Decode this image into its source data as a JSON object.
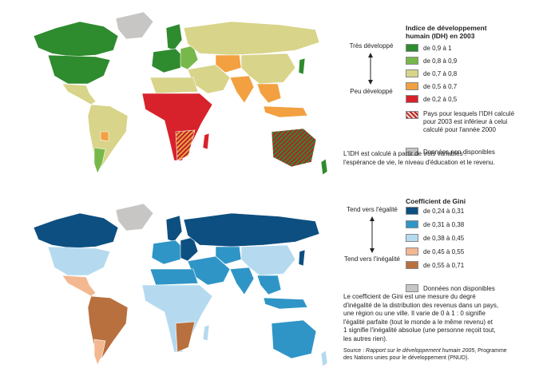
{
  "hdi": {
    "title_line1": "Indice de développement",
    "title_line2": "humain (IDH) en 2003",
    "scale_top": "Très développé",
    "scale_bottom": "Peu développé",
    "classes": [
      {
        "label": "de 0,9 à 1",
        "color": "#2e8b2e"
      },
      {
        "label": "de 0,8 à 0,9",
        "color": "#77b84a"
      },
      {
        "label": "de 0,7 à 0,8",
        "color": "#d8d48a"
      },
      {
        "label": "de 0,5 à 0,7",
        "color": "#f3a040"
      },
      {
        "label": "de 0,2 à 0,5",
        "color": "#d8222b"
      }
    ],
    "hatch_line1": "Pays pour lesquels l'IDH calculé",
    "hatch_line2": "pour 2003 est inférieur à celui",
    "hatch_line3": "calculé pour l'année 2000",
    "nodata": "Données non disponibles",
    "nodata_color": "#c8c6c4",
    "note_line1": "L'IDH est calculé à partir de trois variables :",
    "note_line2": "l'espérance de vie, le niveau d'éducation et le revenu."
  },
  "gini": {
    "title": "Coefficient de Gini",
    "scale_top": "Tend vers l'égalité",
    "scale_bottom": "Tend vers l'inégalité",
    "classes": [
      {
        "label": "de 0,24 à 0,31",
        "color": "#0d4f80"
      },
      {
        "label": "de 0,31 à 0,38",
        "color": "#2f95c6"
      },
      {
        "label": "de 0,38 à 0,45",
        "color": "#b5daef"
      },
      {
        "label": "de 0,45 à 0,55",
        "color": "#f3b890"
      },
      {
        "label": "de 0,55 à 0,71",
        "color": "#b8703e"
      }
    ],
    "nodata": "Données non disponibles",
    "nodata_color": "#c8c6c4",
    "note_line1": "Le coefficient de Gini est une mesure du degré",
    "note_line2": "d'inégalité de la distribution des revenus dans un pays,",
    "note_line3": "une région ou une ville. Il varie de 0 à 1 : 0 signifie",
    "note_line4": "l'égalité parfaite (tout le monde a le même revenu) et",
    "note_line5": "1 signifie l'inégalité absolue (une personne reçoit tout,",
    "note_line6": "les autres rien)."
  },
  "source": {
    "prefix": "Source : ",
    "italic": "Rapport sur le développement humain 2005",
    "rest": ", Programme",
    "line2": "des Nations unies pour le développement (PNUD)."
  }
}
